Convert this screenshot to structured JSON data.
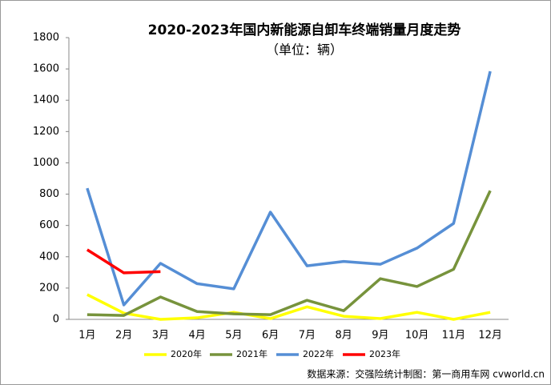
{
  "chart_data": {
    "type": "line",
    "title": "2020-2023年国内新能源自卸车终端销量月度走势",
    "subtitle": "（单位：辆）",
    "source": "数据来源：交强险统计制图：第一商用车网 cvworld.cn",
    "categories": [
      "1月",
      "2月",
      "3月",
      "4月",
      "5月",
      "6月",
      "7月",
      "8月",
      "9月",
      "10月",
      "11月",
      "12月"
    ],
    "series": [
      {
        "name": "2020年",
        "color": "#ffff00",
        "values": [
          158,
          40,
          0,
          10,
          45,
          5,
          80,
          20,
          5,
          45,
          0,
          45
        ]
      },
      {
        "name": "2021年",
        "color": "#77933c",
        "values": [
          30,
          25,
          143,
          50,
          35,
          30,
          122,
          55,
          260,
          210,
          320,
          822
        ]
      },
      {
        "name": "2022年",
        "color": "#558ed5",
        "values": [
          838,
          92,
          358,
          228,
          195,
          685,
          342,
          370,
          352,
          455,
          613,
          1585
        ]
      },
      {
        "name": "2023年",
        "color": "#ff0000",
        "values": [
          445,
          297,
          305,
          null,
          null,
          null,
          null,
          null,
          null,
          null,
          null,
          null
        ]
      }
    ],
    "ylim": [
      0,
      1800
    ],
    "yticks": [
      0,
      200,
      400,
      600,
      800,
      1000,
      1200,
      1400,
      1600,
      1800
    ],
    "legend": "bottom"
  }
}
